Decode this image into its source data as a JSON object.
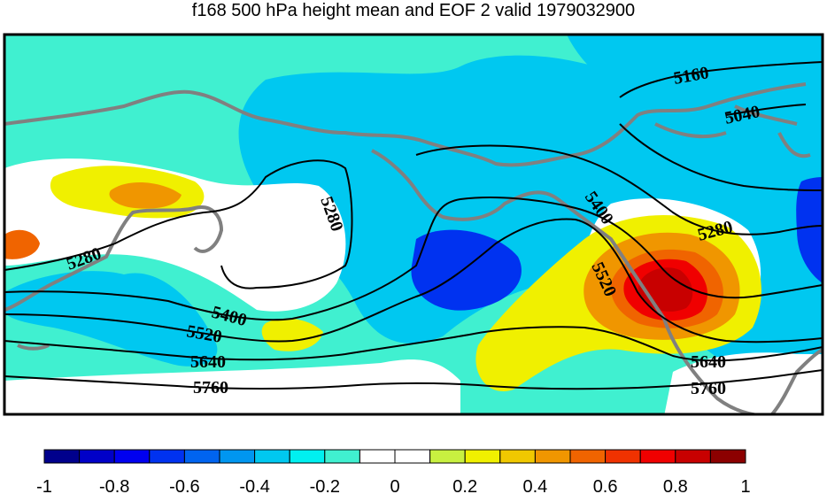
{
  "title": "f168 500 hPa height mean and EOF 2 valid 1979032900",
  "contour_labels": [
    "5160",
    "5040",
    "5280",
    "5280",
    "5400",
    "5280",
    "5520",
    "5400",
    "5520",
    "5640",
    "5760",
    "5640",
    "5760"
  ],
  "colorbar": {
    "colors": [
      "#00008c",
      "#0000c8",
      "#0000f0",
      "#0032f0",
      "#0064f0",
      "#0096f0",
      "#00c8f0",
      "#00f0f0",
      "#40f0d0",
      "#ffffff",
      "#ffffff",
      "#c8f040",
      "#f0f000",
      "#f0c800",
      "#f09600",
      "#f06400",
      "#f03200",
      "#f00000",
      "#c80000",
      "#8c0000"
    ],
    "tick_labels": [
      "-1",
      "-0.8",
      "-0.6",
      "-0.4",
      "-0.2",
      "0",
      "0.2",
      "0.4",
      "0.6",
      "0.8",
      "1"
    ]
  },
  "field_colors": {
    "cyan": "#40f0d0",
    "light_blue": "#00c8f0",
    "mid_blue": "#0096f0",
    "blue": "#0032f0",
    "white": "#ffffff",
    "yellow": "#f0f000",
    "orange": "#f09600",
    "dark_orange": "#f06400",
    "red": "#f00000",
    "dark_red": "#c80000",
    "coast": "#808080"
  }
}
